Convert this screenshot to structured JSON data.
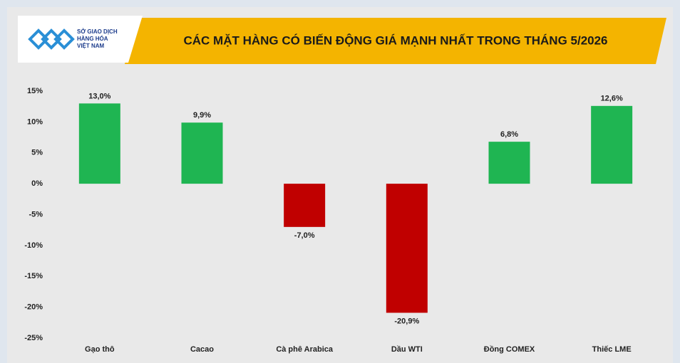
{
  "chart_data": {
    "type": "bar",
    "title": "CÁC MẶT HÀNG CÓ BIẾN ĐỘNG GIÁ MẠNH NHẤT TRONG THÁNG 5/2026",
    "logo_text": [
      "SỞ GIAO DỊCH",
      "HÀNG HÓA",
      "VIỆT NAM"
    ],
    "categories": [
      "Gạo thô",
      "Cacao",
      "Cà phê Arabica",
      "Dầu WTI",
      "Đồng COMEX",
      "Thiếc LME"
    ],
    "values": [
      13.0,
      9.9,
      -7.0,
      -20.9,
      6.8,
      12.6
    ],
    "value_labels": [
      "13,0%",
      "9,9%",
      "-7,0%",
      "-20,9%",
      "6,8%",
      "12,6%"
    ],
    "colors": [
      "#1fb552",
      "#1fb552",
      "#c00000",
      "#c00000",
      "#1fb552",
      "#1fb552"
    ],
    "ylim": [
      -25,
      15
    ],
    "yticks": [
      {
        "value": -25,
        "label": "-25%"
      },
      {
        "value": -20,
        "label": "-20%"
      },
      {
        "value": -15,
        "label": "-15%"
      },
      {
        "value": -10,
        "label": "-10%"
      },
      {
        "value": -5,
        "label": "-5%"
      },
      {
        "value": 0,
        "label": "0%"
      },
      {
        "value": 5,
        "label": "5%"
      },
      {
        "value": 10,
        "label": "10%"
      },
      {
        "value": 15,
        "label": "15%"
      }
    ],
    "grid": false
  }
}
